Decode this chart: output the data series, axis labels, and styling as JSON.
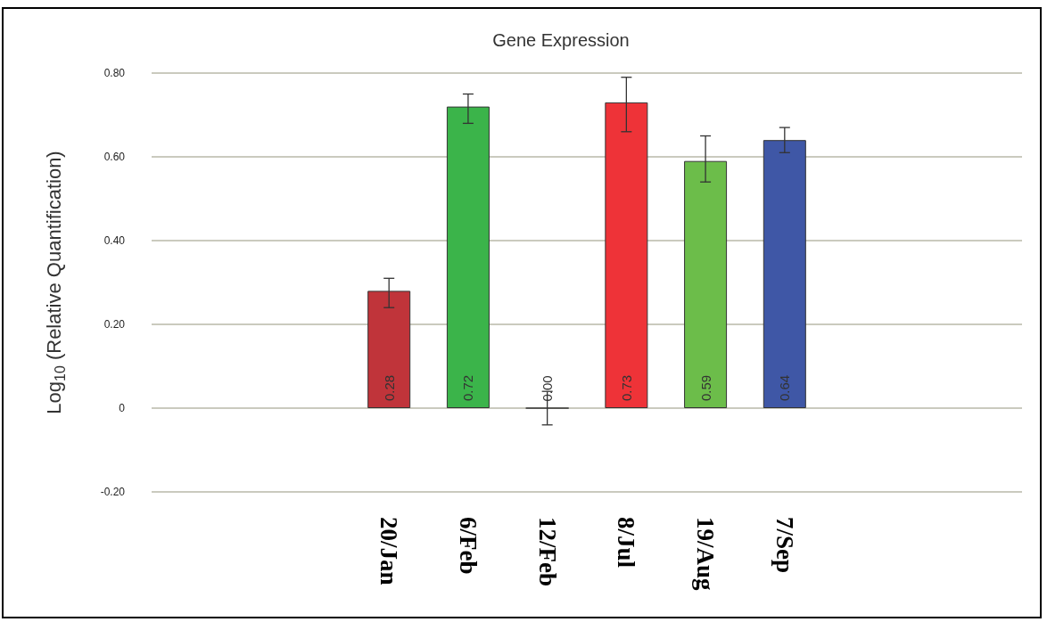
{
  "chart_data": {
    "type": "bar",
    "title": "Gene Expression",
    "ylabel": "Log$_{10}$ (Relative Quantification)",
    "categories": [
      null,
      null,
      null,
      "20/Jan",
      "6/Feb",
      "12/Feb",
      "8/Jul",
      "19/Aug",
      "7/Sep",
      null,
      null,
      null
    ],
    "values": [
      null,
      null,
      null,
      0.28,
      0.72,
      0.0,
      0.73,
      0.59,
      0.64,
      null,
      null,
      null
    ],
    "value_labels": [
      null,
      null,
      null,
      "0.28",
      "0.72",
      "0.00",
      "0.73",
      "0.59",
      "0.64",
      null,
      null,
      null
    ],
    "errors": [
      null,
      null,
      null,
      [
        0.24,
        0.31
      ],
      [
        0.68,
        0.75
      ],
      [
        -0.04,
        0.04
      ],
      [
        0.66,
        0.79
      ],
      [
        0.54,
        0.65
      ],
      [
        0.61,
        0.67
      ],
      null,
      null,
      null
    ],
    "colors": [
      "#888888",
      "#888888",
      "#888888",
      "#c0343a",
      "#3bb44a",
      "#333333",
      "#ee3338",
      "#6cbd4a",
      "#3f57a6",
      "#888888",
      "#888888",
      "#888888"
    ],
    "ylim": [
      -0.2,
      0.8
    ],
    "yticks": [
      {
        "value": -0.2,
        "label": "-0.20"
      },
      0,
      {
        "value": 0.2,
        "label": "0.20"
      },
      {
        "value": 0.4,
        "label": "0.40"
      },
      {
        "value": 0.6,
        "label": "0.60"
      },
      {
        "value": 0.8,
        "label": "0.80"
      }
    ],
    "grid": "y"
  }
}
